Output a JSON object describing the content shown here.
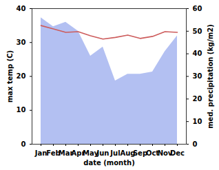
{
  "chart_data": {
    "type": "line",
    "x_label": "date (month)",
    "y_label": "max temp (C)",
    "y2_label": "med. precipitation (kg/m2)",
    "categories": [
      "Jan",
      "Feb",
      "Mar",
      "Apr",
      "May",
      "Jun",
      "Jul",
      "Aug",
      "Sep",
      "Oct",
      "Nov",
      "Dec"
    ],
    "series": [
      {
        "name": "med. precipitation (kg/m2)",
        "type": "area",
        "axis": "y2",
        "color": "#b3c0f2",
        "values": [
          56,
          52,
          54,
          50,
          39,
          43,
          28,
          31,
          31,
          32,
          41,
          48
        ]
      },
      {
        "name": "max temp (C)",
        "type": "line",
        "color": "#cd5c5c",
        "values": [
          35,
          34,
          33,
          33.2,
          32,
          31,
          31.5,
          32.2,
          31.2,
          31.8,
          33.2,
          33
        ]
      }
    ],
    "ylim": [
      0,
      40
    ],
    "yticks": [
      0,
      10,
      20,
      30,
      40
    ],
    "y2lim": [
      0,
      60
    ],
    "y2ticks": [
      0,
      10,
      20,
      30,
      40,
      50,
      60
    ]
  }
}
